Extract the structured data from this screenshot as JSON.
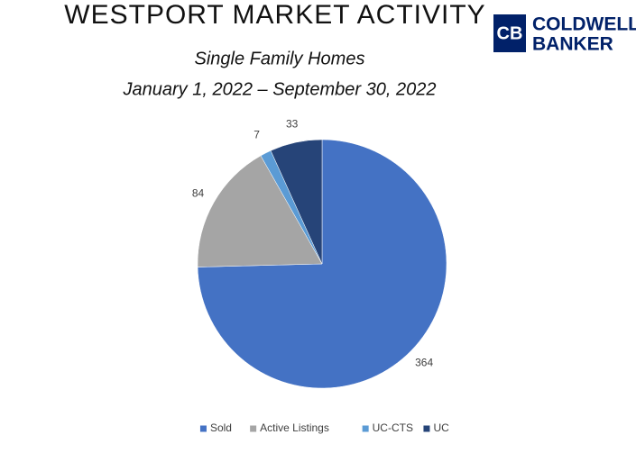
{
  "chart_data": {
    "type": "pie",
    "title": "WESTPORT MARKET ACTIVITY",
    "subtitle": "Single Family Homes",
    "date_range": "January 1, 2022 – September 30, 2022",
    "logo": [
      "COLDWELL",
      "BANKER"
    ],
    "categories": [
      "Sold",
      "Active Listings",
      "UC-CTS",
      "UC"
    ],
    "values": [
      364,
      84,
      7,
      33
    ],
    "colors": [
      "#4472c4",
      "#a5a5a5",
      "#5b9bd5",
      "#264478"
    ],
    "legend": "bottom"
  }
}
